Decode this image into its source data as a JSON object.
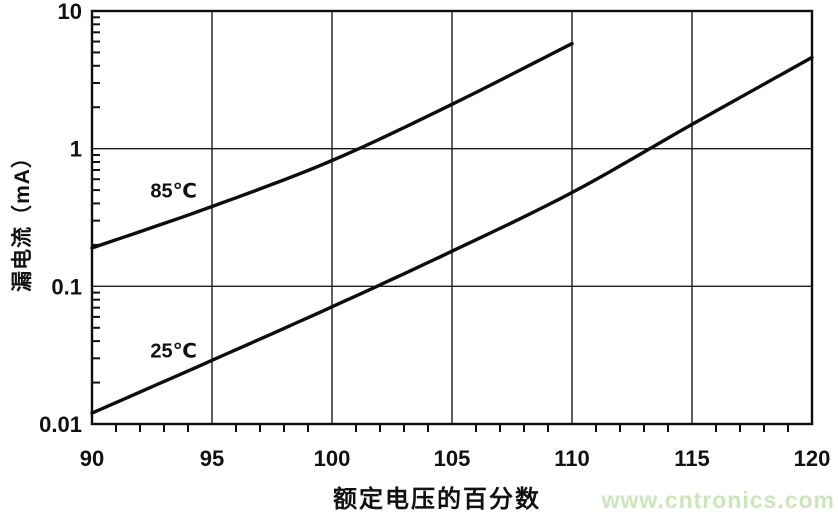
{
  "watermark": {
    "text": "www.cntronics.com",
    "color": "#cbe7ba"
  },
  "chart_data": {
    "type": "line",
    "title": "",
    "xlabel": "额定电压的百分数",
    "ylabel": "漏电流（mA）",
    "yscale": "log",
    "xlim": [
      90,
      120
    ],
    "ylim": [
      0.01,
      10
    ],
    "grid": true,
    "line_color": "#0d0d0d",
    "grid_color": "#1c1c1c",
    "x_ticks": [
      {
        "value": 90,
        "label": "90"
      },
      {
        "value": 95,
        "label": "95"
      },
      {
        "value": 100,
        "label": "100"
      },
      {
        "value": 105,
        "label": "105"
      },
      {
        "value": 110,
        "label": "110"
      },
      {
        "value": 115,
        "label": "115"
      },
      {
        "value": 120,
        "label": "120"
      }
    ],
    "y_ticks": [
      {
        "value": 10,
        "label": "10"
      },
      {
        "value": 1,
        "label": "1"
      },
      {
        "value": 0.1,
        "label": "0.1"
      },
      {
        "value": 0.01,
        "label": "0.01"
      }
    ],
    "x_minor_step": 1,
    "series": [
      {
        "name": "85℃",
        "x": [
          90,
          95,
          100,
          105,
          110
        ],
        "values": [
          0.19,
          0.38,
          0.82,
          2.1,
          5.8
        ],
        "label_at": {
          "x": 93.4,
          "y": 0.49
        }
      },
      {
        "name": "25℃",
        "x": [
          90,
          95,
          100,
          105,
          110,
          115,
          120
        ],
        "values": [
          0.012,
          0.029,
          0.071,
          0.18,
          0.48,
          1.5,
          4.6
        ],
        "label_at": {
          "x": 93.4,
          "y": 0.034
        }
      }
    ]
  }
}
